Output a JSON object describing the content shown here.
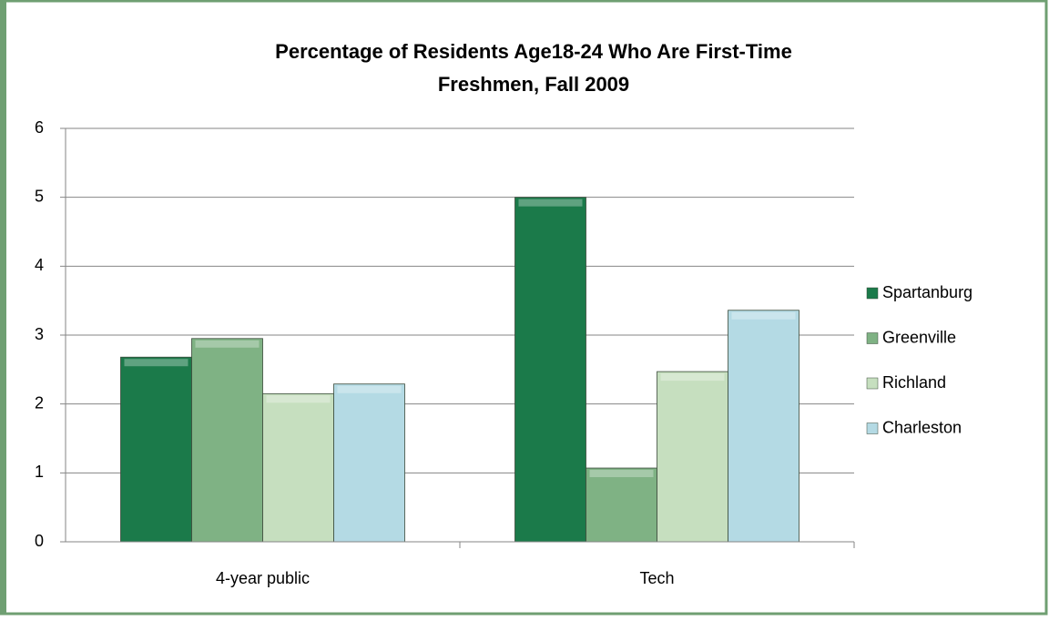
{
  "chart_data": {
    "type": "bar",
    "title": "Percentage of Residents Age18-24 Who Are First-Time Freshmen, Fall 2009",
    "categories": [
      "4-year public",
      "Tech"
    ],
    "series": [
      {
        "name": "Spartanburg",
        "color": "#1b7a4a",
        "values": [
          2.68,
          5.0
        ]
      },
      {
        "name": "Greenville",
        "color": "#7fb284",
        "values": [
          2.95,
          1.07
        ]
      },
      {
        "name": "Richland",
        "color": "#c6dfbf",
        "values": [
          2.15,
          2.47
        ]
      },
      {
        "name": "Charleston",
        "color": "#b4dae4",
        "values": [
          2.29,
          3.36
        ]
      }
    ],
    "ylim": [
      0,
      6
    ],
    "yticks": [
      0,
      1,
      2,
      3,
      4,
      5,
      6
    ],
    "grid": true,
    "legend": "right"
  }
}
